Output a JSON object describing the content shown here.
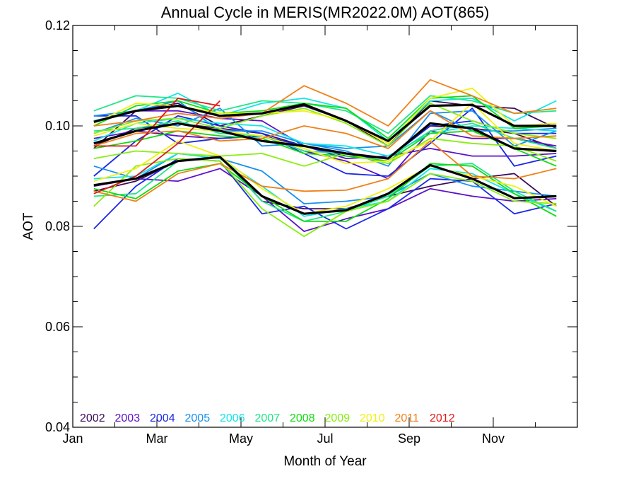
{
  "chart_data": {
    "type": "line",
    "title": "Annual Cycle in MERIS(MR2022.0M) AOT(865)",
    "xlabel": "Month of Year",
    "ylabel": "AOT",
    "xlim": [
      1,
      13
    ],
    "ylim": [
      0.04,
      0.12
    ],
    "x_ticks": [
      {
        "value": 1,
        "label": "Jan"
      },
      {
        "value": 3,
        "label": "Mar"
      },
      {
        "value": 5,
        "label": "May"
      },
      {
        "value": 7,
        "label": "Jul"
      },
      {
        "value": 9,
        "label": "Sep"
      },
      {
        "value": 11,
        "label": "Nov"
      }
    ],
    "y_ticks": [
      {
        "value": 0.04,
        "label": "0.04"
      },
      {
        "value": 0.06,
        "label": "0.06"
      },
      {
        "value": 0.08,
        "label": "0.08"
      },
      {
        "value": 0.1,
        "label": "0.10"
      },
      {
        "value": 0.12,
        "label": "0.12"
      }
    ],
    "x": [
      1.5,
      2.5,
      3.5,
      4.5,
      5.5,
      6.5,
      7.5,
      8.5,
      9.5,
      10.5,
      11.5,
      12.5
    ],
    "legend_position": "bottom-left",
    "series": [
      {
        "name": "2002",
        "color": "#3a0a5a",
        "lines": [
          [
            0.096,
            0.0995,
            0.1005,
            0.0995,
            0.0985,
            0.096,
            0.0945,
            0.0935,
            0.1,
            0.0995,
            0.0985,
            0.0955
          ],
          [
            0.087,
            0.089,
            0.093,
            0.094,
            0.085,
            0.0835,
            0.0835,
            0.086,
            0.088,
            0.0895,
            0.0905,
            0.084
          ],
          [
            0.0955,
            0.103,
            0.1045,
            0.1,
            0.102,
            0.104,
            0.101,
            0.096,
            0.105,
            0.104,
            0.1035,
            0.0995
          ]
        ]
      },
      {
        "name": "2003",
        "color": "#5b10c8",
        "lines": [
          [
            0.088,
            0.0895,
            0.089,
            0.0915,
            0.086,
            0.079,
            0.0815,
            0.0835,
            0.0875,
            0.086,
            0.085,
            0.0855
          ],
          [
            0.0975,
            0.099,
            0.098,
            0.0975,
            0.098,
            0.095,
            0.093,
            0.0895,
            0.099,
            0.0975,
            0.0975,
            0.096
          ],
          [
            0.101,
            0.103,
            0.103,
            0.1015,
            0.101,
            0.096,
            0.0935,
            0.094,
            0.0955,
            0.094,
            0.094,
            0.0945
          ]
        ]
      },
      {
        "name": "2004",
        "color": "#1a28e6",
        "lines": [
          [
            0.0795,
            0.088,
            0.0935,
            0.093,
            0.0825,
            0.084,
            0.0795,
            0.0835,
            0.0895,
            0.089,
            0.0825,
            0.0845
          ],
          [
            0.09,
            0.097,
            0.102,
            0.1,
            0.0985,
            0.0945,
            0.0905,
            0.09,
            0.0965,
            0.1035,
            0.092,
            0.094
          ],
          [
            0.102,
            0.102,
            0.0965,
            0.0975,
            0.098,
            0.096,
            0.094,
            0.0935,
            0.1,
            0.101,
            0.0985,
            0.0985
          ]
        ]
      },
      {
        "name": "2005",
        "color": "#1690f0",
        "lines": [
          [
            0.092,
            0.0895,
            0.0945,
            0.0935,
            0.091,
            0.0845,
            0.085,
            0.086,
            0.0905,
            0.088,
            0.087,
            0.086
          ],
          [
            0.0985,
            0.1015,
            0.1,
            0.1035,
            0.096,
            0.0965,
            0.0955,
            0.096,
            0.103,
            0.099,
            0.099,
            0.0995
          ],
          [
            0.102,
            0.103,
            0.105,
            0.099,
            0.099,
            0.0965,
            0.095,
            0.092,
            0.1025,
            0.103,
            0.096,
            0.099
          ]
        ]
      },
      {
        "name": "2006",
        "color": "#10e6e6",
        "lines": [
          [
            0.0895,
            0.09,
            0.0945,
            0.0935,
            0.088,
            0.082,
            0.0835,
            0.085,
            0.0915,
            0.0905,
            0.0865,
            0.083
          ],
          [
            0.097,
            0.1005,
            0.1015,
            0.1005,
            0.1,
            0.0965,
            0.096,
            0.094,
            0.0985,
            0.1,
            0.0995,
            0.099
          ],
          [
            0.101,
            0.103,
            0.1065,
            0.102,
            0.1045,
            0.1055,
            0.1035,
            0.097,
            0.105,
            0.1055,
            0.101,
            0.105
          ]
        ]
      },
      {
        "name": "2007",
        "color": "#20e688",
        "lines": [
          [
            0.086,
            0.0865,
            0.093,
            0.094,
            0.085,
            0.081,
            0.083,
            0.086,
            0.092,
            0.0925,
            0.087,
            0.083
          ],
          [
            0.099,
            0.0995,
            0.101,
            0.0985,
            0.098,
            0.095,
            0.0945,
            0.0935,
            0.099,
            0.1005,
            0.0975,
            0.0955
          ],
          [
            0.103,
            0.106,
            0.1055,
            0.103,
            0.105,
            0.1045,
            0.103,
            0.0985,
            0.106,
            0.105,
            0.1025,
            0.103
          ]
        ]
      },
      {
        "name": "2008",
        "color": "#10dc10",
        "lines": [
          [
            0.0875,
            0.0855,
            0.091,
            0.0925,
            0.086,
            0.081,
            0.081,
            0.0855,
            0.0925,
            0.092,
            0.0865,
            0.082
          ],
          [
            0.0955,
            0.097,
            0.099,
            0.098,
            0.0975,
            0.0945,
            0.094,
            0.093,
            0.0985,
            0.099,
            0.0955,
            0.092
          ],
          [
            0.1,
            0.104,
            0.105,
            0.1025,
            0.103,
            0.1045,
            0.1035,
            0.0975,
            0.1055,
            0.106,
            0.0995,
            0.1
          ]
        ]
      },
      {
        "name": "2009",
        "color": "#88ee10",
        "lines": [
          [
            0.084,
            0.092,
            0.0935,
            0.093,
            0.0835,
            0.078,
            0.083,
            0.085,
            0.0905,
            0.089,
            0.085,
            0.0845
          ],
          [
            0.0935,
            0.095,
            0.0945,
            0.094,
            0.0945,
            0.092,
            0.0945,
            0.0925,
            0.0975,
            0.0965,
            0.096,
            0.093
          ],
          [
            0.0985,
            0.101,
            0.1015,
            0.0995,
            0.102,
            0.1035,
            0.1005,
            0.096,
            0.1045,
            0.101,
            0.0985,
            0.0975
          ]
        ]
      },
      {
        "name": "2010",
        "color": "#f0f010",
        "lines": [
          [
            0.089,
            0.0915,
            0.097,
            0.094,
            0.0875,
            0.0825,
            0.084,
            0.0875,
            0.092,
            0.09,
            0.088,
            0.084
          ],
          [
            0.098,
            0.1005,
            0.0995,
            0.099,
            0.098,
            0.0955,
            0.0925,
            0.093,
            0.097,
            0.1045,
            0.0965,
            0.095
          ],
          [
            0.1005,
            0.1045,
            0.104,
            0.1025,
            0.1025,
            0.103,
            0.101,
            0.0965,
            0.1055,
            0.1075,
            0.1,
            0.1005
          ]
        ]
      },
      {
        "name": "2011",
        "color": "#f08018",
        "lines": [
          [
            0.087,
            0.085,
            0.0905,
            0.0925,
            0.088,
            0.087,
            0.0872,
            0.0895,
            0.097,
            0.09,
            0.0895,
            0.0915
          ],
          [
            0.096,
            0.0985,
            0.099,
            0.097,
            0.0975,
            0.1,
            0.0985,
            0.0955,
            0.103,
            0.098,
            0.0975,
            0.098
          ],
          [
            0.1,
            0.101,
            0.1025,
            0.1015,
            0.1025,
            0.108,
            0.1045,
            0.1,
            0.1092,
            0.106,
            0.1025,
            0.1035
          ]
        ]
      },
      {
        "name": "2012",
        "color": "#e61818",
        "lines": [
          [
            0.0865,
            0.09,
            0.0965,
            0.105
          ],
          [
            0.096,
            0.096,
            0.1055,
            0.104
          ]
        ]
      },
      {
        "name": "",
        "color": "#000000",
        "lines": [
          [
            0.0882,
            0.0895,
            0.093,
            0.0938,
            0.086,
            0.0825,
            0.0832,
            0.0865,
            0.0922,
            0.0895,
            0.0856,
            0.086
          ],
          [
            0.0965,
            0.099,
            0.1005,
            0.099,
            0.097,
            0.096,
            0.0945,
            0.0935,
            0.1005,
            0.0995,
            0.0955,
            0.095
          ],
          [
            0.1008,
            0.103,
            0.104,
            0.102,
            0.1025,
            0.1043,
            0.101,
            0.097,
            0.104,
            0.1042,
            0.1,
            0.1
          ]
        ]
      }
    ]
  }
}
